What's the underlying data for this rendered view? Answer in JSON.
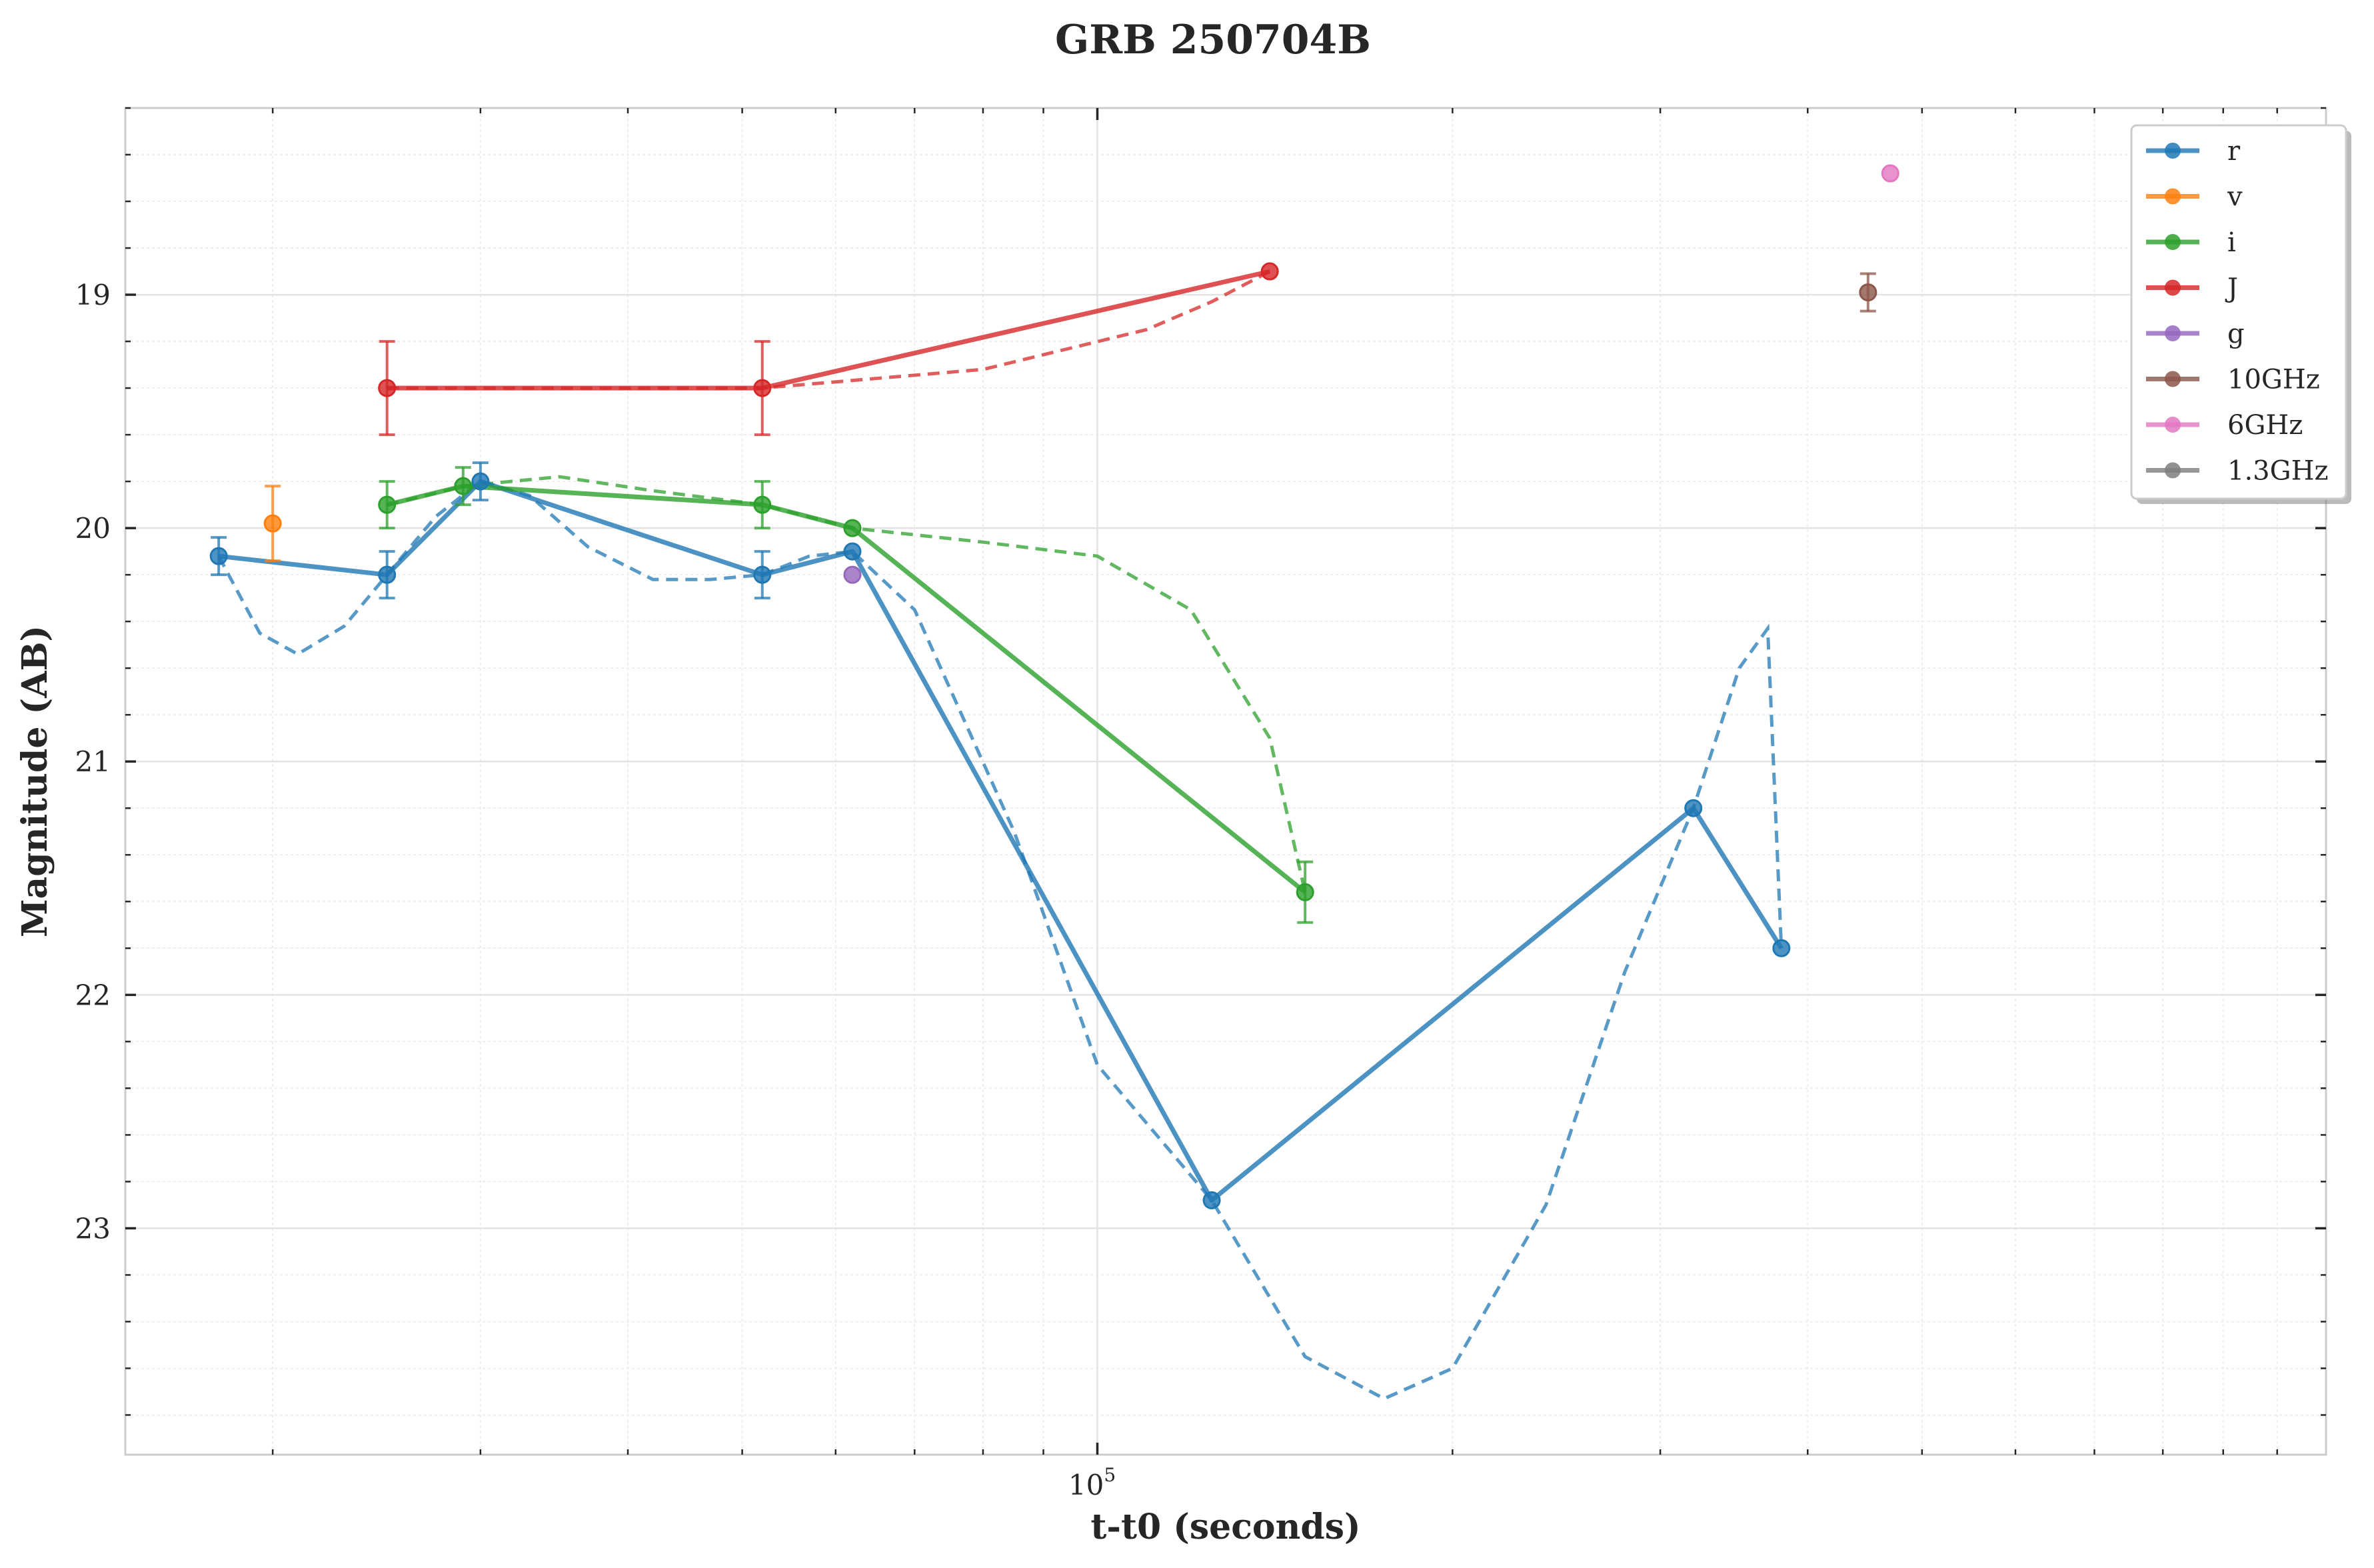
{
  "chart_data": {
    "type": "line",
    "title": "GRB 250704B",
    "xlabel": "t-t0 (seconds)",
    "ylabel": "Magnitude (AB)",
    "x_scale": "log",
    "y_inverted": true,
    "xlim": [
      15000,
      1100000
    ],
    "ylim": [
      23.97,
      18.2
    ],
    "x_ticks": [
      {
        "value": 100000,
        "base": "10",
        "exp": "5"
      }
    ],
    "y_ticks": [
      19,
      20,
      21,
      22,
      23
    ],
    "grid": true,
    "legend_position": "top-right",
    "series": [
      {
        "name": "r",
        "color": "#1f77b4",
        "points": [
          {
            "x": 18000,
            "y": 20.12,
            "err": 0.08
          },
          {
            "x": 25000,
            "y": 20.2,
            "err": 0.1
          },
          {
            "x": 30000,
            "y": 19.8,
            "err": 0.08
          },
          {
            "x": 52000,
            "y": 20.2,
            "err": 0.1
          },
          {
            "x": 62000,
            "y": 20.1
          },
          {
            "x": 125000,
            "y": 22.88
          },
          {
            "x": 320000,
            "y": 21.2
          },
          {
            "x": 380000,
            "y": 21.8
          }
        ],
        "fit": [
          [
            18000,
            20.12
          ],
          [
            19500,
            20.45
          ],
          [
            21000,
            20.54
          ],
          [
            23000,
            20.42
          ],
          [
            25000,
            20.2
          ],
          [
            27500,
            19.95
          ],
          [
            30000,
            19.8
          ],
          [
            33000,
            19.86
          ],
          [
            37000,
            20.08
          ],
          [
            42000,
            20.22
          ],
          [
            47000,
            20.22
          ],
          [
            52000,
            20.2
          ],
          [
            57000,
            20.12
          ],
          [
            62000,
            20.1
          ],
          [
            70000,
            20.35
          ],
          [
            85000,
            21.3
          ],
          [
            100000,
            22.3
          ],
          [
            125000,
            22.88
          ],
          [
            150000,
            23.55
          ],
          [
            175000,
            23.73
          ],
          [
            200000,
            23.6
          ],
          [
            240000,
            22.9
          ],
          [
            280000,
            21.9
          ],
          [
            320000,
            21.2
          ],
          [
            350000,
            20.6
          ],
          [
            370000,
            20.43
          ],
          [
            380000,
            21.8
          ]
        ]
      },
      {
        "name": "v",
        "color": "#ff7f0e",
        "points": [
          {
            "x": 20000,
            "y": 19.98,
            "err": 0.16
          }
        ]
      },
      {
        "name": "i",
        "color": "#2ca02c",
        "points": [
          {
            "x": 25000,
            "y": 19.9,
            "err": 0.1
          },
          {
            "x": 29000,
            "y": 19.82,
            "err": 0.08
          },
          {
            "x": 52000,
            "y": 19.9,
            "err": 0.1
          },
          {
            "x": 62000,
            "y": 20.0
          },
          {
            "x": 150000,
            "y": 21.56,
            "err": 0.13
          }
        ],
        "fit": [
          [
            25000,
            19.9
          ],
          [
            27000,
            19.86
          ],
          [
            29000,
            19.82
          ],
          [
            35000,
            19.78
          ],
          [
            42000,
            19.84
          ],
          [
            52000,
            19.9
          ],
          [
            62000,
            20.0
          ],
          [
            80000,
            20.06
          ],
          [
            100000,
            20.12
          ],
          [
            120000,
            20.35
          ],
          [
            140000,
            20.9
          ],
          [
            150000,
            21.56
          ]
        ]
      },
      {
        "name": "J",
        "color": "#d62728",
        "points": [
          {
            "x": 25000,
            "y": 19.4,
            "err": 0.2
          },
          {
            "x": 52000,
            "y": 19.4,
            "err": 0.2
          },
          {
            "x": 140000,
            "y": 18.9
          }
        ],
        "fit": [
          [
            25000,
            19.4
          ],
          [
            52000,
            19.4
          ],
          [
            80000,
            19.32
          ],
          [
            110000,
            19.15
          ],
          [
            125000,
            19.03
          ],
          [
            140000,
            18.9
          ]
        ]
      },
      {
        "name": "g",
        "color": "#9467bd",
        "points": [
          {
            "x": 62000,
            "y": 20.2
          }
        ]
      },
      {
        "name": "10GHz",
        "color": "#8c564b",
        "points": [
          {
            "x": 450000,
            "y": 18.99,
            "err": 0.08
          }
        ]
      },
      {
        "name": "6GHz",
        "color": "#e377c2",
        "points": [
          {
            "x": 470000,
            "y": 18.48
          }
        ]
      },
      {
        "name": "1.3GHz",
        "color": "#7f7f7f",
        "points": []
      }
    ]
  }
}
